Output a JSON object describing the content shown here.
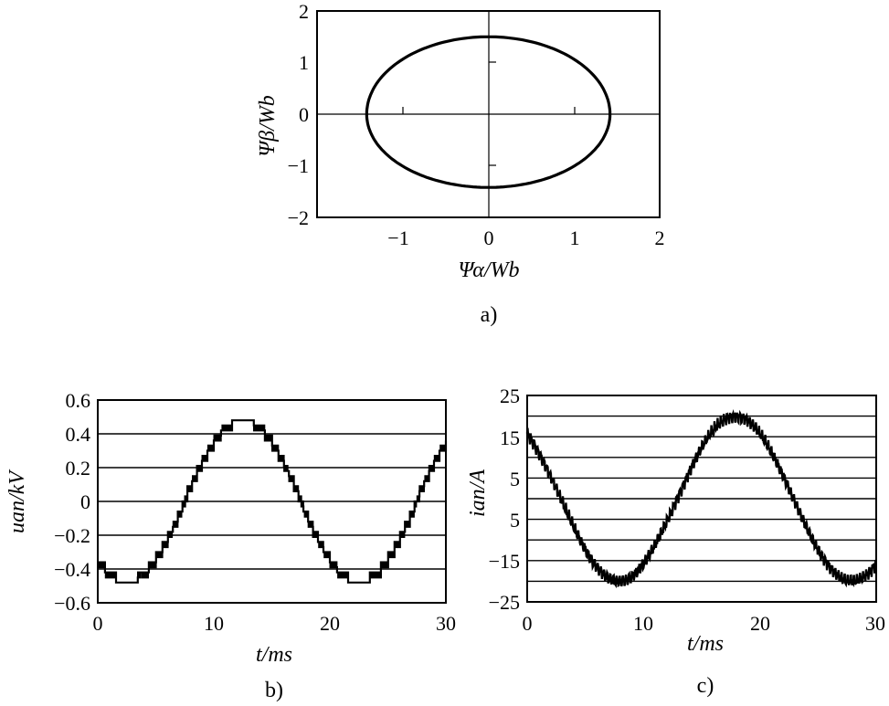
{
  "chart_data": [
    {
      "id": "a",
      "caption": "a)",
      "type": "line",
      "xlabel": "Ψα/Wb",
      "ylabel": "Ψβ/Wb",
      "xlim": [
        -2,
        2
      ],
      "ylim": [
        -2,
        2
      ],
      "xticks": [
        "−1",
        "0",
        "1",
        "2"
      ],
      "yticks": [
        "2",
        "1",
        "0",
        "−1",
        "−2"
      ],
      "series": [
        {
          "shape": "ellipse",
          "center": [
            0,
            0
          ],
          "x_radius": 1.42,
          "y_radius_top": 1.5,
          "y_radius_bottom": 1.42
        }
      ]
    },
    {
      "id": "b",
      "caption": "b)",
      "type": "line",
      "xlabel": "t/ms",
      "ylabel": "uan/kV",
      "xlim": [
        0,
        30
      ],
      "ylim": [
        -0.6,
        0.6
      ],
      "xticks": [
        "0",
        "10",
        "20",
        "30"
      ],
      "yticks": [
        "0.6",
        "0.4",
        "0.2",
        "0",
        "−0.2",
        "−0.4",
        "−0.6"
      ],
      "grid": "horizontal",
      "series": [
        {
          "waveform": "stepped-sine",
          "amplitude": 0.47,
          "period_ms": 20,
          "phase_deg": 225,
          "step": 0.06
        }
      ]
    },
    {
      "id": "c",
      "caption": "c)",
      "type": "line",
      "xlabel": "t/ms",
      "ylabel": "ian/A",
      "xlim": [
        0,
        30
      ],
      "ylim": [
        -25,
        25
      ],
      "xticks": [
        "0",
        "10",
        "20",
        "30"
      ],
      "yticks": [
        "25",
        "15",
        "5",
        "5",
        "−15",
        "−25"
      ],
      "grid": "horizontal",
      "series": [
        {
          "waveform": "noisy-sine",
          "amplitude": 20,
          "period_ms": 20,
          "phase_deg": 128
        }
      ]
    }
  ]
}
